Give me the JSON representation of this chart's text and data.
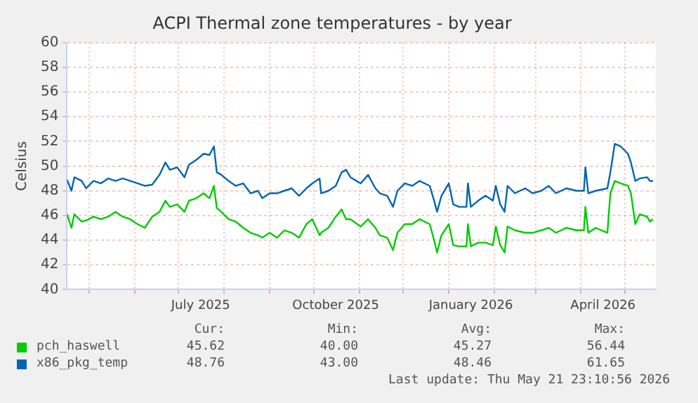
{
  "chart_data": {
    "type": "line",
    "title": "ACPI Thermal zone temperatures - by year",
    "ylabel": "Celsius",
    "xlim": [
      "2025-04-16",
      "2026-05-22"
    ],
    "xticks": [
      {
        "value": "2025-05-01",
        "label": null
      },
      {
        "value": "2025-06-01",
        "label": null
      },
      {
        "value": "2025-07-01",
        "label": null
      },
      {
        "value": "2025-07-16",
        "label": "July 2025"
      },
      {
        "value": "2025-08-01",
        "label": null
      },
      {
        "value": "2025-09-01",
        "label": null
      },
      {
        "value": "2025-10-01",
        "label": null
      },
      {
        "value": "2025-10-16",
        "label": "October 2025"
      },
      {
        "value": "2025-11-01",
        "label": null
      },
      {
        "value": "2025-12-01",
        "label": null
      },
      {
        "value": "2026-01-01",
        "label": null
      },
      {
        "value": "2026-01-16",
        "label": "January 2026"
      },
      {
        "value": "2026-02-01",
        "label": null
      },
      {
        "value": "2026-03-01",
        "label": null
      },
      {
        "value": "2026-04-01",
        "label": null
      },
      {
        "value": "2026-04-16",
        "label": "April 2026"
      },
      {
        "value": "2026-05-01",
        "label": null
      }
    ],
    "ylim": [
      40,
      60
    ],
    "yticks": [
      40,
      42,
      44,
      46,
      48,
      50,
      52,
      54,
      56,
      58,
      60
    ],
    "grid": true,
    "legend": "bottom",
    "marker": "none",
    "line_style": "solid",
    "x": [
      "2025-04-16",
      "2025-04-19",
      "2025-04-21",
      "2025-04-26",
      "2025-04-29",
      "2025-05-04",
      "2025-05-09",
      "2025-05-14",
      "2025-05-19",
      "2025-05-24",
      "2025-05-29",
      "2025-06-03",
      "2025-06-08",
      "2025-06-13",
      "2025-06-18",
      "2025-06-22",
      "2025-06-25",
      "2025-06-30",
      "2025-07-05",
      "2025-07-08",
      "2025-07-13",
      "2025-07-18",
      "2025-07-22",
      "2025-07-25",
      "2025-07-27",
      "2025-07-30",
      "2025-08-04",
      "2025-08-09",
      "2025-08-14",
      "2025-08-19",
      "2025-08-24",
      "2025-08-27",
      "2025-09-01",
      "2025-09-06",
      "2025-09-11",
      "2025-09-16",
      "2025-09-21",
      "2025-09-26",
      "2025-09-30",
      "2025-10-05",
      "2025-10-06",
      "2025-10-11",
      "2025-10-16",
      "2025-10-20",
      "2025-10-23",
      "2025-10-26",
      "2025-11-02",
      "2025-11-07",
      "2025-11-12",
      "2025-11-15",
      "2025-11-20",
      "2025-11-24",
      "2025-11-27",
      "2025-12-02",
      "2025-12-07",
      "2025-12-12",
      "2025-12-19",
      "2025-12-22",
      "2025-12-24",
      "2025-12-27",
      "2026-01-01",
      "2026-01-04",
      "2026-01-08",
      "2026-01-13",
      "2026-01-14",
      "2026-01-16",
      "2026-01-21",
      "2026-01-26",
      "2026-01-31",
      "2026-02-02",
      "2026-02-05",
      "2026-02-08",
      "2026-02-10",
      "2026-02-15",
      "2026-02-22",
      "2026-02-27",
      "2026-03-05",
      "2026-03-10",
      "2026-03-15",
      "2026-03-22",
      "2026-03-29",
      "2026-04-03",
      "2026-04-04",
      "2026-04-06",
      "2026-04-11",
      "2026-04-19",
      "2026-04-21",
      "2026-04-24",
      "2026-04-28",
      "2026-05-03",
      "2026-05-05",
      "2026-05-08",
      "2026-05-11",
      "2026-05-16",
      "2026-05-18",
      "2026-05-20"
    ],
    "series": [
      {
        "name": "pch_haswell",
        "color": "#00cc00",
        "values": [
          46.1,
          45.0,
          46.1,
          45.5,
          45.6,
          45.9,
          45.7,
          45.9,
          46.3,
          45.9,
          45.7,
          45.3,
          45.0,
          45.9,
          46.3,
          47.2,
          46.7,
          46.9,
          46.3,
          47.2,
          47.4,
          47.8,
          47.4,
          48.4,
          46.6,
          46.3,
          45.7,
          45.5,
          45.0,
          44.6,
          44.4,
          44.2,
          44.6,
          44.2,
          44.8,
          44.6,
          44.2,
          45.3,
          45.7,
          44.4,
          44.6,
          45.0,
          45.9,
          46.5,
          45.7,
          45.7,
          45.1,
          45.7,
          45.0,
          44.4,
          44.2,
          43.2,
          44.6,
          45.3,
          45.3,
          45.7,
          45.3,
          44.0,
          43.0,
          44.4,
          45.3,
          43.6,
          43.5,
          43.5,
          45.3,
          43.5,
          43.8,
          43.8,
          43.6,
          45.1,
          43.6,
          43.0,
          45.1,
          44.8,
          44.6,
          44.6,
          44.8,
          45.0,
          44.6,
          45.0,
          44.8,
          44.8,
          46.7,
          44.6,
          45.0,
          44.6,
          47.8,
          48.8,
          48.6,
          48.4,
          47.8,
          45.3,
          46.1,
          45.9,
          45.5,
          45.7
        ]
      },
      {
        "name": "x86_pkg_temp",
        "color": "#0066b3",
        "values": [
          48.9,
          48.0,
          49.1,
          48.8,
          48.2,
          48.8,
          48.6,
          49.0,
          48.8,
          49.0,
          48.8,
          48.6,
          48.4,
          48.5,
          49.3,
          50.3,
          49.7,
          49.9,
          49.1,
          50.1,
          50.5,
          51.0,
          50.9,
          51.6,
          49.5,
          49.3,
          48.8,
          48.4,
          48.6,
          47.8,
          48.0,
          47.4,
          47.8,
          47.8,
          48.0,
          48.2,
          47.6,
          48.2,
          48.6,
          49.0,
          47.8,
          48.0,
          48.4,
          49.5,
          49.7,
          49.1,
          48.6,
          49.3,
          48.2,
          47.8,
          47.6,
          46.7,
          48.0,
          48.6,
          48.4,
          48.8,
          48.4,
          47.2,
          46.3,
          47.6,
          48.6,
          46.9,
          46.7,
          46.7,
          48.6,
          46.7,
          47.2,
          47.6,
          47.2,
          48.4,
          46.9,
          46.3,
          48.4,
          47.8,
          48.2,
          47.8,
          48.0,
          48.4,
          47.8,
          48.2,
          48.0,
          48.0,
          49.9,
          47.8,
          48.0,
          48.2,
          49.5,
          51.8,
          51.6,
          51.0,
          50.3,
          48.8,
          49.0,
          49.1,
          48.8,
          48.8
        ]
      }
    ],
    "annotations": [
      "Cur:",
      "Min:",
      "Avg:",
      "Max:",
      "45.62",
      "40.00",
      "45.27",
      "56.44",
      "48.76",
      "43.00",
      "48.46",
      "61.65",
      "Last update: Thu May 21 23:10:56 2026"
    ]
  }
}
